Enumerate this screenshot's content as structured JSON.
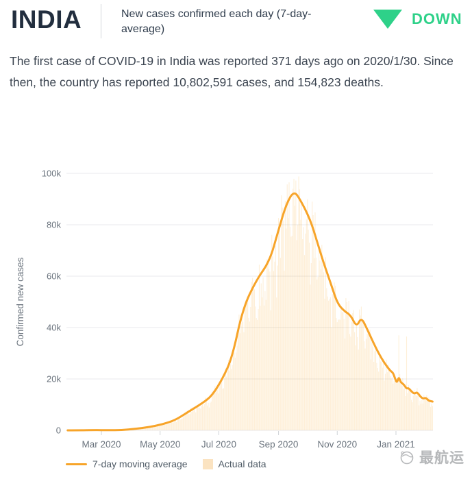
{
  "header": {
    "country": "INDIA",
    "subtitle": "New cases confirmed each day (7-day-average)",
    "trend_label": "DOWN",
    "trend_color": "#2ed189"
  },
  "summary": "The first case of COVID-19 in India was reported 371 days ago on 2020/1/30. Since then, the country has reported 10,802,591 cases, and 154,823 deaths.",
  "watermark": "最航运",
  "colors": {
    "line": "#f7a429",
    "bars": "rgba(247,164,40,0.18)",
    "grid": "#e8eaec",
    "tick_text": "#6a737d"
  },
  "chart_data": {
    "type": "line",
    "title": "",
    "xlabel": "",
    "ylabel": "Confirmed new cases",
    "ylim": [
      0,
      100000
    ],
    "grid": true,
    "legend_position": "bottom-left",
    "yticks": [
      {
        "label": "0",
        "v": 0
      },
      {
        "label": "20k",
        "v": 20000
      },
      {
        "label": "40k",
        "v": 40000
      },
      {
        "label": "60k",
        "v": 60000
      },
      {
        "label": "80k",
        "v": 80000
      },
      {
        "label": "100k",
        "v": 100000
      }
    ],
    "xticks": [
      {
        "label": "Mar 2020",
        "date": "2020-03-01"
      },
      {
        "label": "May 2020",
        "date": "2020-05-01"
      },
      {
        "label": "Jul 2020",
        "date": "2020-07-01"
      },
      {
        "label": "Sep 2020",
        "date": "2020-09-01"
      },
      {
        "label": "Nov 2020",
        "date": "2020-11-01"
      },
      {
        "label": "Jan 2021",
        "date": "2021-01-01"
      }
    ],
    "x_range": [
      "2020-01-26",
      "2021-02-08"
    ],
    "legend": [
      {
        "label": "7-day moving average",
        "swatch": "line",
        "color": "#f7a429"
      },
      {
        "label": "Actual data",
        "swatch": "bar",
        "color": "#fbe3c1"
      }
    ],
    "series": [
      {
        "name": "7-day moving average",
        "points": [
          [
            "2020-01-26",
            0
          ],
          [
            "2020-02-09",
            0
          ],
          [
            "2020-02-23",
            100
          ],
          [
            "2020-03-08",
            50
          ],
          [
            "2020-03-22",
            90
          ],
          [
            "2020-04-05",
            600
          ],
          [
            "2020-04-19",
            1200
          ],
          [
            "2020-05-03",
            2300
          ],
          [
            "2020-05-17",
            4000
          ],
          [
            "2020-05-31",
            7400
          ],
          [
            "2020-06-14",
            10600
          ],
          [
            "2020-06-24",
            13500
          ],
          [
            "2020-07-05",
            20200
          ],
          [
            "2020-07-15",
            28500
          ],
          [
            "2020-07-26",
            47500
          ],
          [
            "2020-08-09",
            58500
          ],
          [
            "2020-08-23",
            66000
          ],
          [
            "2020-09-01",
            78000
          ],
          [
            "2020-09-09",
            88000
          ],
          [
            "2020-09-17",
            93300
          ],
          [
            "2020-09-24",
            89500
          ],
          [
            "2020-10-04",
            82000
          ],
          [
            "2020-10-11",
            73500
          ],
          [
            "2020-10-18",
            65000
          ],
          [
            "2020-10-25",
            57500
          ],
          [
            "2020-11-01",
            49500
          ],
          [
            "2020-11-08",
            46500
          ],
          [
            "2020-11-15",
            44800
          ],
          [
            "2020-11-21",
            40200
          ],
          [
            "2020-11-26",
            44000
          ],
          [
            "2020-12-02",
            39500
          ],
          [
            "2020-12-08",
            34500
          ],
          [
            "2020-12-14",
            30000
          ],
          [
            "2020-12-20",
            26200
          ],
          [
            "2020-12-26",
            23200
          ],
          [
            "2020-12-29",
            22400
          ],
          [
            "2020-12-31",
            20200
          ],
          [
            "2021-01-02",
            18400
          ],
          [
            "2021-01-04",
            20900
          ],
          [
            "2021-01-06",
            18600
          ],
          [
            "2021-01-09",
            18000
          ],
          [
            "2021-01-12",
            16200
          ],
          [
            "2021-01-14",
            16500
          ],
          [
            "2021-01-17",
            15200
          ],
          [
            "2021-01-20",
            14200
          ],
          [
            "2021-01-23",
            14900
          ],
          [
            "2021-01-26",
            13300
          ],
          [
            "2021-01-29",
            12300
          ],
          [
            "2021-02-01",
            12700
          ],
          [
            "2021-02-04",
            11500
          ],
          [
            "2021-02-08",
            11200
          ]
        ]
      },
      {
        "name": "Actual data",
        "render": "daily-bars-around-average",
        "notable_values": [
          [
            "2020-09-17",
            97900
          ],
          [
            "2020-09-12",
            96500
          ],
          [
            "2020-09-10",
            95700
          ],
          [
            "2021-01-04",
            37000
          ],
          [
            "2021-01-12",
            36500
          ]
        ]
      }
    ]
  }
}
